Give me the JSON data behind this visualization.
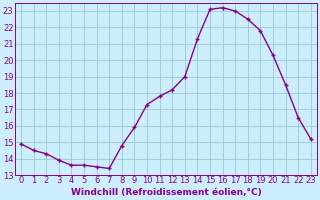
{
  "x": [
    0,
    1,
    2,
    3,
    4,
    5,
    6,
    7,
    8,
    9,
    10,
    11,
    12,
    13,
    14,
    15,
    16,
    17,
    18,
    19,
    20,
    21,
    22,
    23
  ],
  "y": [
    14.9,
    14.5,
    14.3,
    13.9,
    13.6,
    13.6,
    13.5,
    13.4,
    14.8,
    15.9,
    17.3,
    17.8,
    18.2,
    19.0,
    21.3,
    23.1,
    23.2,
    23.0,
    22.5,
    21.8,
    20.3,
    18.5,
    16.5,
    15.2
  ],
  "line_color": "#880088",
  "marker": "+",
  "background_color": "#cceeff",
  "grid_color": "#99cccc",
  "xlabel": "Windchill (Refroidissement éolien,°C)",
  "xlim": [
    -0.5,
    23.5
  ],
  "ylim": [
    13.0,
    23.5
  ],
  "yticks": [
    13,
    14,
    15,
    16,
    17,
    18,
    19,
    20,
    21,
    22,
    23
  ],
  "xticks": [
    0,
    1,
    2,
    3,
    4,
    5,
    6,
    7,
    8,
    9,
    10,
    11,
    12,
    13,
    14,
    15,
    16,
    17,
    18,
    19,
    20,
    21,
    22,
    23
  ],
  "xlabel_fontsize": 6.5,
  "tick_fontsize": 6,
  "line_width": 1.0,
  "marker_size": 3.5
}
